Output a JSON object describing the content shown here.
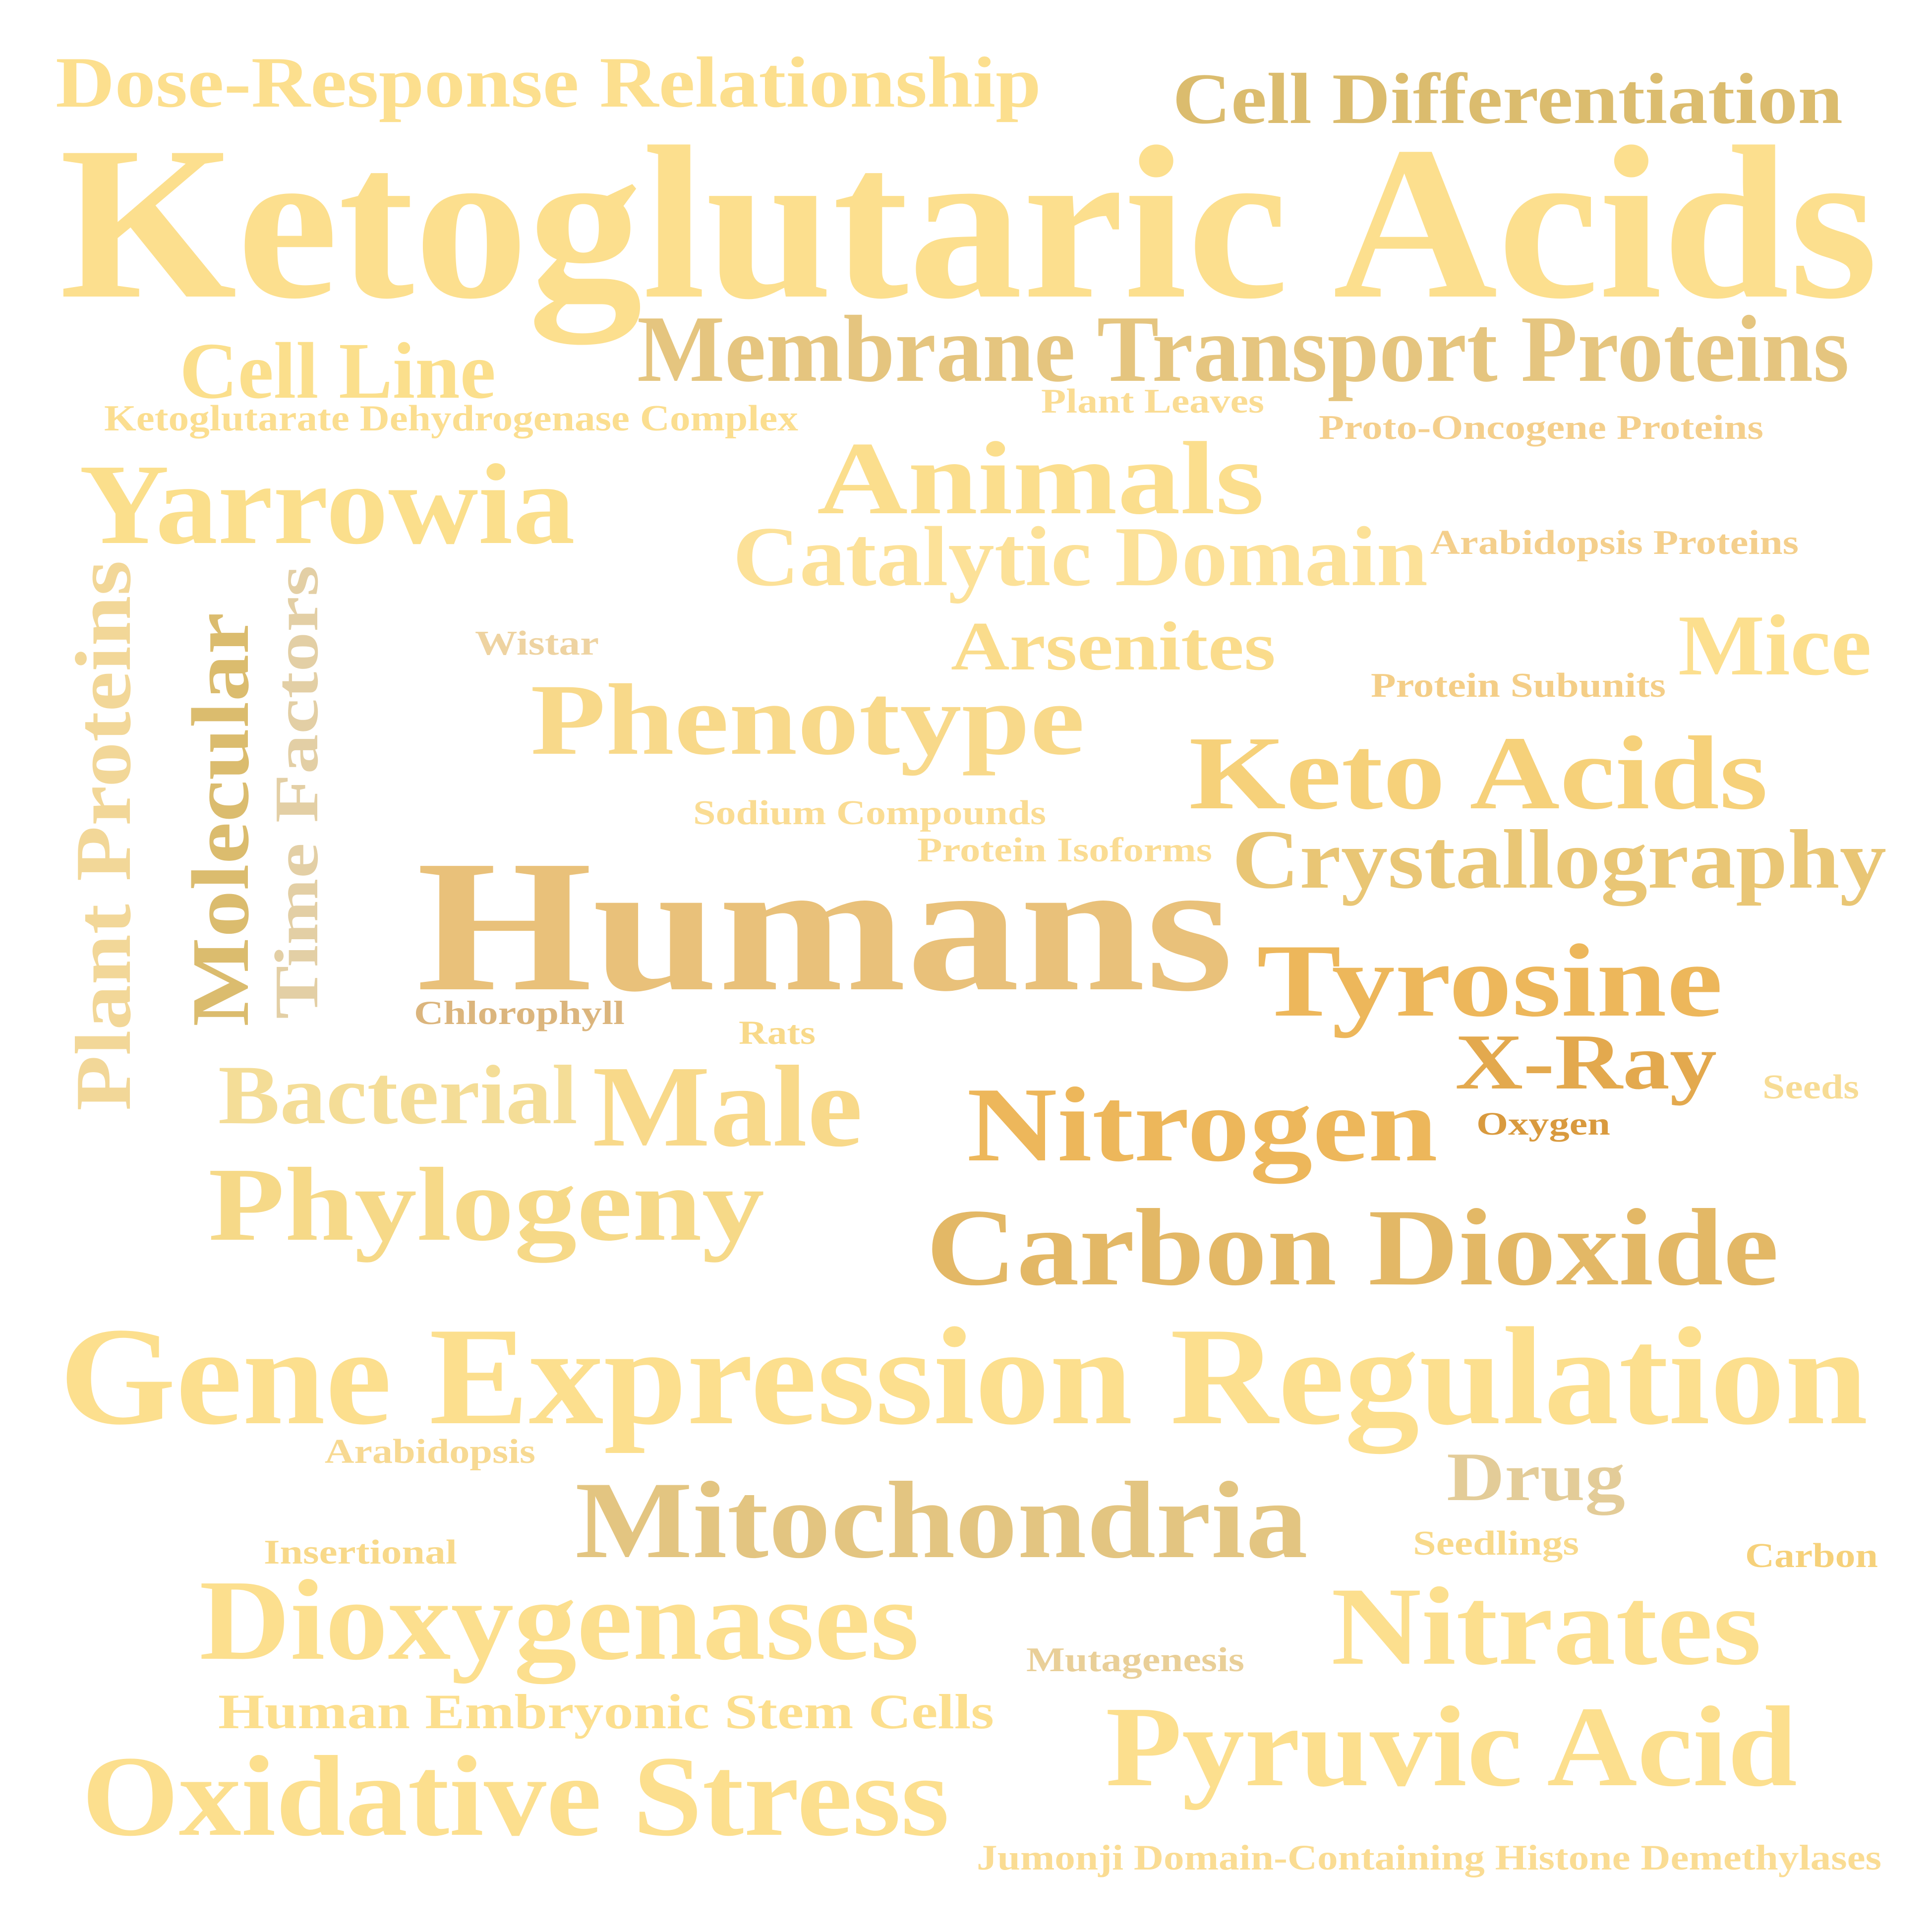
{
  "words": [
    {
      "text": "Dose-Response Relationship",
      "color": "#FCDF8E"
    },
    {
      "text": "Cell Differentiation",
      "color": "#DBBC6E"
    },
    {
      "text": "Ketoglutaric Acids",
      "color": "#FCDF8E"
    },
    {
      "text": "Cell Line",
      "color": "#FBDF8C"
    },
    {
      "text": "Membrane Transport Proteins",
      "color": "#E5C57F"
    },
    {
      "text": "Ketoglutarate Dehydrogenase Complex",
      "color": "#FBDE90"
    },
    {
      "text": "Plant Leaves",
      "color": "#FADC93"
    },
    {
      "text": "Proto-Oncogene Proteins",
      "color": "#F4CF8C"
    },
    {
      "text": "Yarrowia",
      "color": "#FBDF8C"
    },
    {
      "text": "Animals",
      "color": "#FBDE8D"
    },
    {
      "text": "Catalytic Domain",
      "color": "#FCE198"
    },
    {
      "text": "Arabidopsis Proteins",
      "color": "#F4CF8C"
    },
    {
      "text": "Plant Proteins",
      "color": "#F2D798"
    },
    {
      "text": "Molecular",
      "color": "#DBBC6E"
    },
    {
      "text": "Time Factors",
      "color": "#E3CFA5"
    },
    {
      "text": "Wistar",
      "color": "#EED3A1"
    },
    {
      "text": "Arsenites",
      "color": "#FADC8C"
    },
    {
      "text": "Mice",
      "color": "#FCDF8E"
    },
    {
      "text": "Protein Subunits",
      "color": "#F4CE87"
    },
    {
      "text": "Phenotype",
      "color": "#F8D98A"
    },
    {
      "text": "Keto Acids",
      "color": "#F6D17A"
    },
    {
      "text": "Sodium Compounds",
      "color": "#FADC93"
    },
    {
      "text": "Protein Isoforms",
      "color": "#FADC93"
    },
    {
      "text": "Crystallography",
      "color": "#E9C675"
    },
    {
      "text": "Humans",
      "color": "#E9C17A"
    },
    {
      "text": "Tyrosine",
      "color": "#EDB75B"
    },
    {
      "text": "Chlorophyll",
      "color": "#DBB57D"
    },
    {
      "text": "Rats",
      "color": "#F8D98A"
    },
    {
      "text": "X-Ray",
      "color": "#E3A94E"
    },
    {
      "text": "Bacterial",
      "color": "#F4DD97"
    },
    {
      "text": "Male",
      "color": "#F8D98A"
    },
    {
      "text": "Nitrogen",
      "color": "#EDB75B"
    },
    {
      "text": "Seeds",
      "color": "#F7DC95"
    },
    {
      "text": "Oxygen",
      "color": "#D99A3E"
    },
    {
      "text": "Phylogeny",
      "color": "#F6D988"
    },
    {
      "text": "Carbon Dioxide",
      "color": "#E3B866"
    },
    {
      "text": "Gene Expression Regulation",
      "color": "#FCDF8E"
    },
    {
      "text": "Arabidopsis",
      "color": "#F7D992"
    },
    {
      "text": "Drug",
      "color": "#E3CC98"
    },
    {
      "text": "Mitochondria",
      "color": "#E3C581"
    },
    {
      "text": "Insertional",
      "color": "#F8D98A"
    },
    {
      "text": "Seedlings",
      "color": "#F8D98A"
    },
    {
      "text": "Carbon",
      "color": "#F6D17A"
    },
    {
      "text": "Dioxygenases",
      "color": "#FCDF8E"
    },
    {
      "text": "Nitrates",
      "color": "#FCDF8E"
    },
    {
      "text": "Mutagenesis",
      "color": "#E9CF98"
    },
    {
      "text": "Human Embryonic Stem Cells",
      "color": "#FCDF8E"
    },
    {
      "text": "Pyruvic Acid",
      "color": "#FCDF8E"
    },
    {
      "text": "Oxidative Stress",
      "color": "#FCDF8E"
    },
    {
      "text": "Jumonji Domain-Containing Histone Demethylases",
      "color": "#FADC93"
    }
  ]
}
